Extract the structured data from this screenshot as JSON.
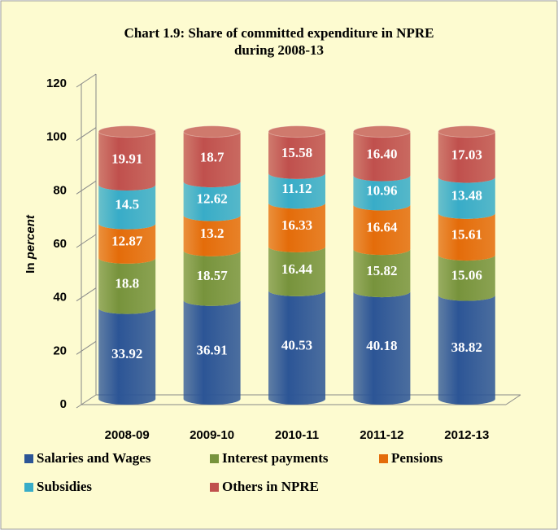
{
  "chart_data": {
    "type": "stacked_cylinder_bar",
    "title": [
      "Chart 1.9: Share of committed expenditure in NPRE",
      "during 2008-13"
    ],
    "ylabel": "In",
    "ylabel_emphasis": "percent",
    "categories": [
      "2008-09",
      "2009-10",
      "2010-11",
      "2011-12",
      "2012-13"
    ],
    "series": [
      {
        "name": "Salaries and Wages",
        "color": "#2c5596",
        "values": [
          33.92,
          36.91,
          40.53,
          40.18,
          38.82
        ]
      },
      {
        "name": "Interest payments",
        "color": "#77933c",
        "values": [
          18.8,
          18.57,
          16.44,
          15.82,
          15.06
        ]
      },
      {
        "name": "Pensions",
        "color": "#e46c0a",
        "values": [
          12.87,
          13.2,
          16.33,
          16.64,
          15.61
        ]
      },
      {
        "name": "Subsidies",
        "color": "#38acc8",
        "values": [
          14.5,
          12.62,
          11.12,
          10.96,
          13.48
        ]
      },
      {
        "name": "Others in NPRE",
        "color": "#c0504d",
        "values": [
          19.91,
          18.7,
          15.58,
          16.4,
          17.03
        ],
        "value_labels": [
          "19.91",
          "18.7",
          "15.58",
          "16.40",
          "17.03"
        ]
      }
    ],
    "ylim": [
      0,
      120
    ],
    "yticks": [
      0,
      20,
      40,
      60,
      80,
      100,
      120
    ],
    "grid": false,
    "legend": "bottom"
  }
}
